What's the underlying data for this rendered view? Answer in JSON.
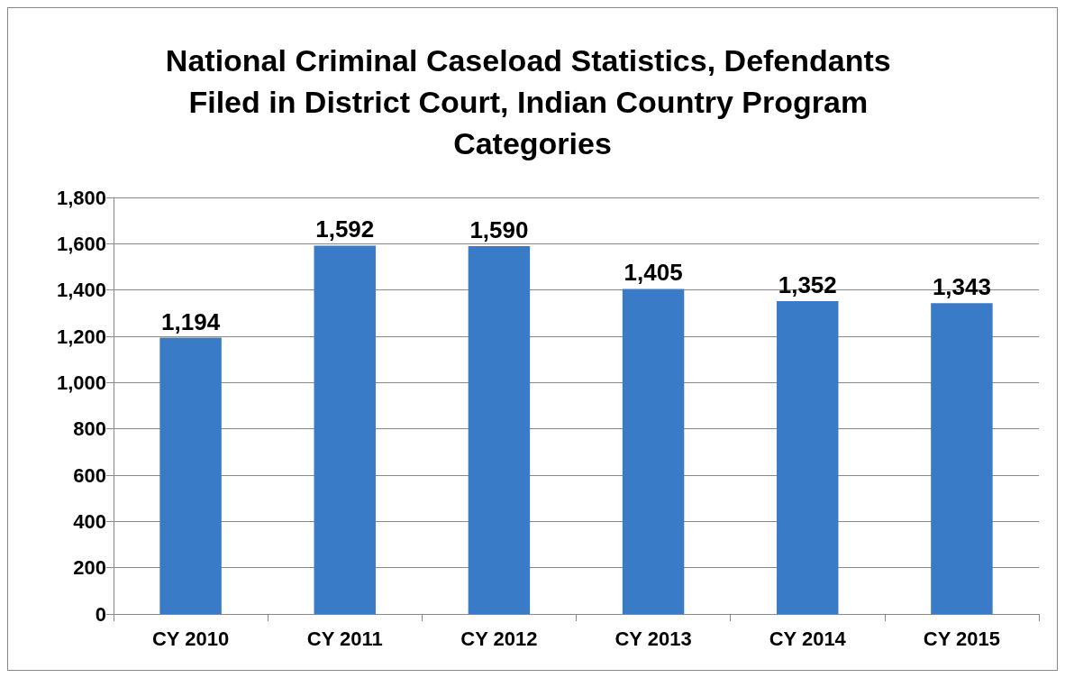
{
  "chart_data": {
    "type": "bar",
    "title": "National Criminal Caseload Statistics, Defendants Filed in District Court, Indian Country Program Categories",
    "categories": [
      "CY 2010",
      "CY 2011",
      "CY 2012",
      "CY 2013",
      "CY 2014",
      "CY 2015"
    ],
    "values": [
      1194,
      1592,
      1590,
      1405,
      1352,
      1343
    ],
    "color": "#3a7bc8",
    "ylim": [
      0,
      1800
    ],
    "yticks": [
      {
        "value": 0,
        "label": "0"
      },
      {
        "value": 200,
        "label": "200"
      },
      {
        "value": 400,
        "label": "400"
      },
      {
        "value": 600,
        "label": "600"
      },
      {
        "value": 800,
        "label": "800"
      },
      {
        "value": 1000,
        "label": "1,000"
      },
      {
        "value": 1200,
        "label": "1,200"
      },
      {
        "value": 1400,
        "label": "1,400"
      },
      {
        "value": 1600,
        "label": "1,600"
      },
      {
        "value": 1800,
        "label": "1,800"
      }
    ],
    "value_labels": [
      "1,194",
      "1,592",
      "1,590",
      "1,405",
      "1,352",
      "1,343"
    ],
    "grid": "y"
  }
}
